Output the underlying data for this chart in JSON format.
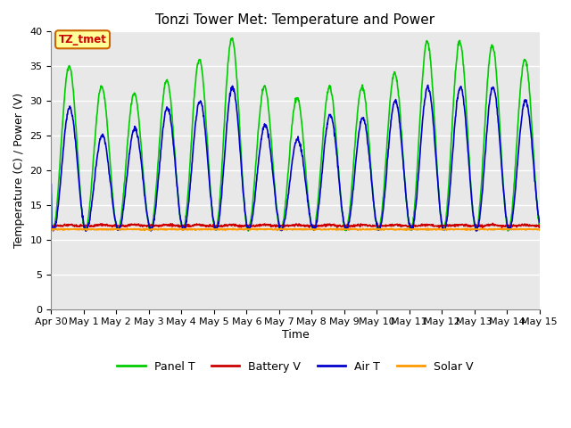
{
  "title": "Tonzi Tower Met: Temperature and Power",
  "xlabel": "Time",
  "ylabel": "Temperature (C) / Power (V)",
  "ylim": [
    0,
    40
  ],
  "yticks": [
    0,
    5,
    10,
    15,
    20,
    25,
    30,
    35,
    40
  ],
  "bg_color": "#e8e8e8",
  "fig_bg_color": "#ffffff",
  "annotation_label": "TZ_tmet",
  "annotation_bg": "#ffff99",
  "annotation_border": "#cc6600",
  "annotation_text_color": "#cc0000",
  "x_tick_labels": [
    "Apr 30",
    "May 1",
    "May 2",
    "May 3",
    "May 4",
    "May 5",
    "May 6",
    "May 7",
    "May 8",
    "May 9",
    "May 10",
    "May 11",
    "May 12",
    "May 13",
    "May 14",
    "May 15"
  ],
  "legend_labels": [
    "Panel T",
    "Battery V",
    "Air T",
    "Solar V"
  ],
  "legend_colors": [
    "#00cc00",
    "#cc0000",
    "#0000cc",
    "#ff9900"
  ],
  "panel_t_color": "#00cc00",
  "battery_v_color": "#cc0000",
  "air_t_color": "#0000cc",
  "solar_v_color": "#ff9900",
  "line_width": 1.2,
  "panel_peaks": [
    35,
    32,
    31,
    33,
    36,
    39,
    32,
    30.5,
    32,
    32,
    34,
    38.5,
    38.5,
    38,
    36
  ],
  "air_peaks": [
    29,
    25,
    26,
    29,
    30,
    32,
    26.5,
    24.5,
    28,
    27.5,
    30,
    32,
    32,
    32,
    30
  ],
  "trough_base": 11.5,
  "battery_v_mean": 12.0,
  "solar_v_mean": 11.5
}
